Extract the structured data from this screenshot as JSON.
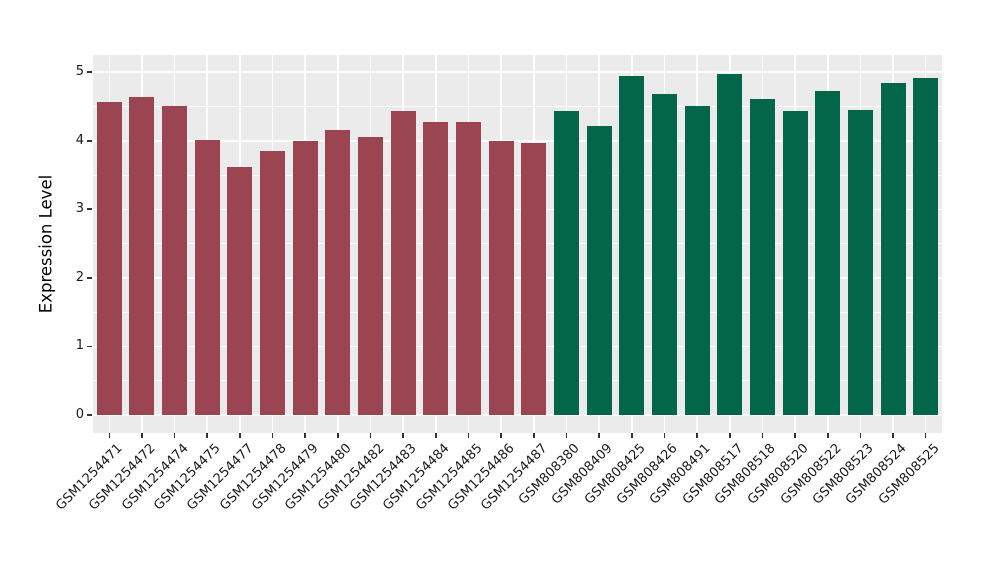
{
  "chart_data": {
    "type": "bar",
    "title": "",
    "xlabel": "",
    "ylabel": "Expression Level",
    "ylim": [
      -0.26,
      5.25
    ],
    "yticks": [
      0,
      1,
      2,
      3,
      4,
      5
    ],
    "yticks_minor": [
      0.5,
      1.5,
      2.5,
      3.5,
      4.5
    ],
    "grid": "white major and minor horizontal lines, white vertical line at each category, on gray panel",
    "legend_position": "none",
    "panel_background": "#EBEBEB",
    "gridline_color": "#FFFFFF",
    "categories": [
      "GSM1254471",
      "GSM1254472",
      "GSM1254474",
      "GSM1254475",
      "GSM1254477",
      "GSM1254478",
      "GSM1254479",
      "GSM1254480",
      "GSM1254482",
      "GSM1254483",
      "GSM1254484",
      "GSM1254485",
      "GSM1254486",
      "GSM1254487",
      "GSM808380",
      "GSM808409",
      "GSM808425",
      "GSM808426",
      "GSM808491",
      "GSM808517",
      "GSM808518",
      "GSM808520",
      "GSM808522",
      "GSM808523",
      "GSM808524",
      "GSM808525"
    ],
    "values": [
      4.57,
      4.64,
      4.51,
      4.01,
      3.62,
      3.85,
      3.99,
      4.16,
      4.06,
      4.43,
      4.28,
      4.28,
      4.0,
      3.97,
      4.43,
      4.21,
      4.95,
      4.68,
      4.51,
      4.98,
      4.61,
      4.44,
      4.72,
      4.45,
      4.84,
      4.91
    ],
    "bar_groups": [
      "g1",
      "g1",
      "g1",
      "g1",
      "g1",
      "g1",
      "g1",
      "g1",
      "g1",
      "g1",
      "g1",
      "g1",
      "g1",
      "g1",
      "g2",
      "g2",
      "g2",
      "g2",
      "g2",
      "g2",
      "g2",
      "g2",
      "g2",
      "g2",
      "g2",
      "g2"
    ],
    "group_colors": {
      "g1": "#9A4551",
      "g2": "#046648"
    }
  }
}
